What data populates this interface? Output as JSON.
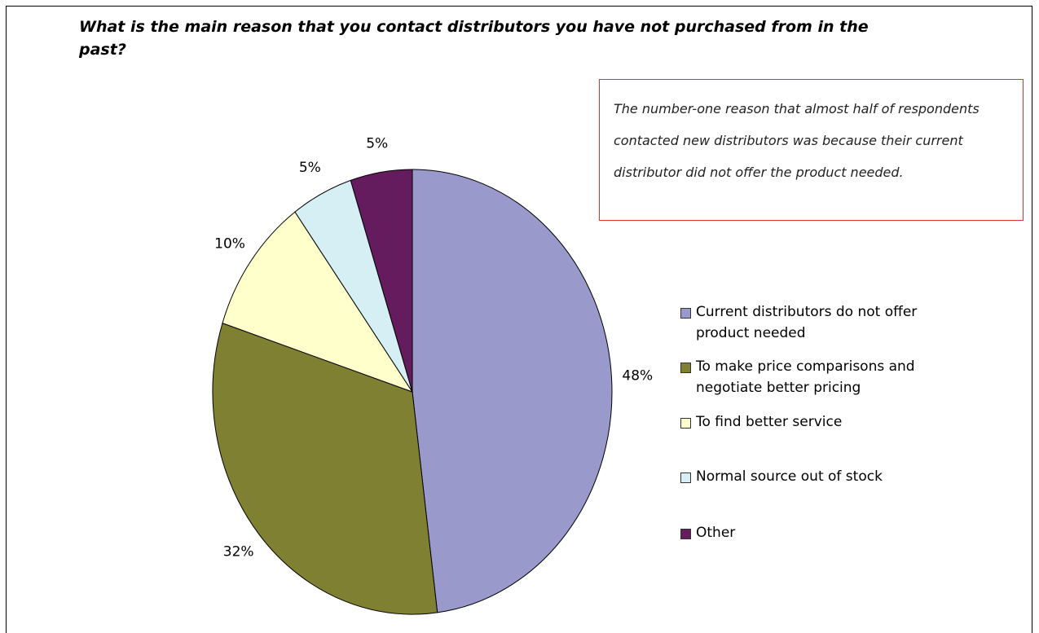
{
  "chart_data": {
    "type": "pie",
    "title": "What is the main reason that you contact distributors you have not purchased from in the past?",
    "annotation": "The number-one reason that almost half of respondents contacted new distributors was because their current distributor did not offer the product needed.",
    "categories": [
      "Current distributors do not offer product needed",
      "To make price comparisons and negotiate better pricing",
      "To find better service",
      "Normal source out of stock",
      "Other"
    ],
    "values": [
      48,
      32,
      10,
      5,
      5
    ],
    "value_labels": [
      "48%",
      "32%",
      "10%",
      "5%",
      "5%"
    ],
    "colors": [
      "#9999cc",
      "#808033",
      "#ffffcc",
      "#d6eff4",
      "#641c5e"
    ]
  }
}
